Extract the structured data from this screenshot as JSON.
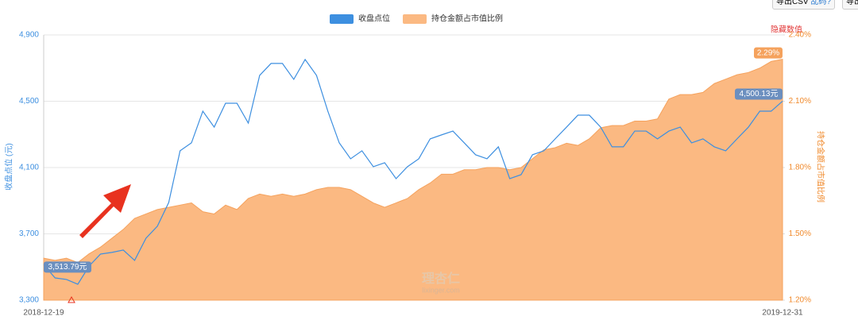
{
  "toolbar": {
    "export_csv": "导出CSV",
    "garbled": "乱码?",
    "export_more": "导出"
  },
  "hide_values": "隐藏数值",
  "watermark": {
    "brand": "理杏仁",
    "site": "lixinger.com"
  },
  "chart_data": {
    "type": "line",
    "y_label": "收盘点位 (元)",
    "y2_label": "持仓金额占市值比例",
    "categories": [
      "2018-12-19",
      null,
      null,
      null,
      null,
      null,
      null,
      null,
      null,
      null,
      null,
      null,
      null,
      null,
      null,
      null,
      null,
      null,
      null,
      null,
      null,
      null,
      null,
      null,
      null,
      null,
      null,
      null,
      null,
      null,
      null,
      null,
      null,
      null,
      null,
      null,
      null,
      null,
      null,
      null,
      null,
      null,
      null,
      null,
      null,
      null,
      null,
      null,
      null,
      null,
      null,
      null,
      null,
      null,
      null,
      null,
      null,
      null,
      null,
      null,
      null,
      null,
      null,
      null,
      null,
      "2019-12-31"
    ],
    "ylim": [
      3300,
      4900
    ],
    "yticks": [
      {
        "value": 3300,
        "label": "3,300"
      },
      {
        "value": 3700,
        "label": "3,700"
      },
      {
        "value": 4100,
        "label": "4,100"
      },
      {
        "value": 4500,
        "label": "4,500"
      },
      {
        "value": 4900,
        "label": "4,900"
      }
    ],
    "y2lim": [
      1.2,
      2.4
    ],
    "y2ticks": [
      {
        "value": 1.2,
        "label": "1.20%"
      },
      {
        "value": 1.5,
        "label": "1.50%"
      },
      {
        "value": 1.8,
        "label": "1.80%"
      },
      {
        "value": 2.1,
        "label": "2.10%"
      },
      {
        "value": 2.4,
        "label": "2.40%"
      }
    ],
    "grid": true,
    "series": [
      {
        "name": "收盘点位",
        "color": "#3d8fe0",
        "axis": "y",
        "values": [
          3513.79,
          3434,
          3425,
          3396,
          3506,
          3578,
          3588,
          3602,
          3540,
          3674,
          3746,
          3889,
          4201,
          4249,
          4440,
          4344,
          4488,
          4488,
          4368,
          4656,
          4728,
          4728,
          4632,
          4752,
          4656,
          4440,
          4249,
          4153,
          4201,
          4105,
          4129,
          4033,
          4105,
          4153,
          4273,
          4297,
          4320,
          4249,
          4177,
          4153,
          4225,
          4033,
          4057,
          4177,
          4201,
          4273,
          4344,
          4416,
          4416,
          4344,
          4225,
          4225,
          4320,
          4320,
          4273,
          4320,
          4344,
          4249,
          4273,
          4225,
          4201,
          4273,
          4344,
          4440,
          4440,
          4500.13
        ],
        "value_labels": [
          "3,513.79元",
          null,
          null,
          null,
          null,
          null,
          null,
          null,
          null,
          null,
          null,
          null,
          null,
          null,
          null,
          null,
          null,
          null,
          null,
          null,
          null,
          null,
          null,
          null,
          null,
          null,
          null,
          null,
          null,
          null,
          null,
          null,
          null,
          null,
          null,
          null,
          null,
          null,
          null,
          null,
          null,
          null,
          null,
          null,
          null,
          null,
          null,
          null,
          null,
          null,
          null,
          null,
          null,
          null,
          null,
          null,
          null,
          null,
          null,
          null,
          null,
          null,
          null,
          null,
          null,
          "4,500.13元"
        ]
      },
      {
        "name": "持仓金额占市值比例",
        "color": "#fbb982",
        "axis": "y2",
        "type": "area",
        "values": [
          1.39,
          1.38,
          1.39,
          1.37,
          1.41,
          1.44,
          1.48,
          1.52,
          1.57,
          1.59,
          1.61,
          1.62,
          1.63,
          1.64,
          1.6,
          1.59,
          1.63,
          1.61,
          1.66,
          1.68,
          1.67,
          1.68,
          1.67,
          1.68,
          1.7,
          1.71,
          1.71,
          1.7,
          1.67,
          1.64,
          1.62,
          1.64,
          1.66,
          1.7,
          1.73,
          1.77,
          1.77,
          1.79,
          1.79,
          1.8,
          1.8,
          1.79,
          1.8,
          1.84,
          1.88,
          1.89,
          1.91,
          1.9,
          1.93,
          1.98,
          1.99,
          1.99,
          2.01,
          2.01,
          2.02,
          2.11,
          2.13,
          2.13,
          2.14,
          2.18,
          2.2,
          2.22,
          2.23,
          2.25,
          2.28,
          2.29
        ],
        "value_labels": [
          null,
          null,
          null,
          null,
          null,
          null,
          null,
          null,
          null,
          null,
          null,
          null,
          null,
          null,
          null,
          null,
          null,
          null,
          null,
          null,
          null,
          null,
          null,
          null,
          null,
          null,
          null,
          null,
          null,
          null,
          null,
          null,
          null,
          null,
          null,
          null,
          null,
          null,
          null,
          null,
          null,
          null,
          null,
          null,
          null,
          null,
          null,
          null,
          null,
          null,
          null,
          null,
          null,
          null,
          null,
          null,
          null,
          null,
          null,
          null,
          null,
          null,
          null,
          null,
          null,
          "2.29%"
        ]
      }
    ]
  }
}
